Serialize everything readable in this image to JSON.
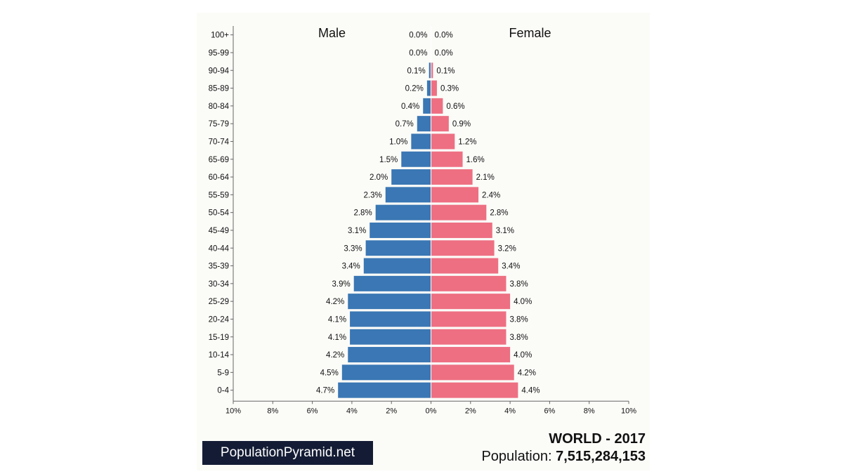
{
  "colors": {
    "male": "#3a77b4",
    "female": "#ee6f82",
    "axis": "#666666",
    "card_background": "#fbfbf8",
    "brand_background": "#141c35"
  },
  "chart_data": {
    "type": "bar",
    "orientation": "horizontal",
    "layout": "population-pyramid",
    "categories": [
      "100+",
      "95-99",
      "90-94",
      "85-89",
      "80-84",
      "75-79",
      "70-74",
      "65-69",
      "60-64",
      "55-59",
      "50-54",
      "45-49",
      "40-44",
      "35-39",
      "30-34",
      "25-29",
      "20-24",
      "15-19",
      "10-14",
      "5-9",
      "0-4"
    ],
    "series": [
      {
        "name": "Male",
        "side": "left",
        "values": [
          0.0,
          0.0,
          0.1,
          0.2,
          0.4,
          0.7,
          1.0,
          1.5,
          2.0,
          2.3,
          2.8,
          3.1,
          3.3,
          3.4,
          3.9,
          4.2,
          4.1,
          4.1,
          4.2,
          4.5,
          4.7
        ],
        "labels": [
          "0.0%",
          "0.0%",
          "0.1%",
          "0.2%",
          "0.4%",
          "0.7%",
          "1.0%",
          "1.5%",
          "2.0%",
          "2.3%",
          "2.8%",
          "3.1%",
          "3.3%",
          "3.4%",
          "3.9%",
          "4.2%",
          "4.1%",
          "4.1%",
          "4.2%",
          "4.5%",
          "4.7%"
        ]
      },
      {
        "name": "Female",
        "side": "right",
        "values": [
          0.0,
          0.0,
          0.1,
          0.3,
          0.6,
          0.9,
          1.2,
          1.6,
          2.1,
          2.4,
          2.8,
          3.1,
          3.2,
          3.4,
          3.8,
          4.0,
          3.8,
          3.8,
          4.0,
          4.2,
          4.4
        ],
        "labels": [
          "0.0%",
          "0.0%",
          "0.1%",
          "0.3%",
          "0.6%",
          "0.9%",
          "1.2%",
          "1.6%",
          "2.1%",
          "2.4%",
          "2.8%",
          "3.1%",
          "3.2%",
          "3.4%",
          "3.8%",
          "4.0%",
          "3.8%",
          "3.8%",
          "4.0%",
          "4.2%",
          "4.4%"
        ]
      }
    ],
    "x_ticks": [
      "10%",
      "8%",
      "6%",
      "4%",
      "2%",
      "0%",
      "2%",
      "4%",
      "6%",
      "8%",
      "10%"
    ],
    "xlim": [
      -10,
      10
    ],
    "title": "WORLD - 2017",
    "population_label": "Population:",
    "population_value": "7,515,284,153",
    "brand": "PopulationPyramid.net",
    "grid": false
  }
}
